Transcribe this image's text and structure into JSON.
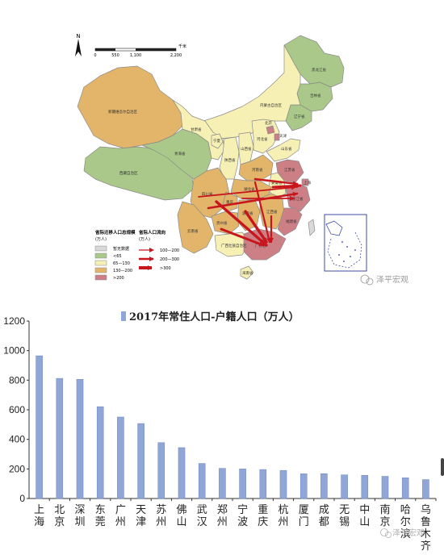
{
  "map": {
    "north_label": "N",
    "scale_labels": [
      "0",
      "550",
      "1,100",
      "2,200"
    ],
    "scale_unit": "千米",
    "legend_size": {
      "title": "省际迁移人口总规模",
      "unit": "(万人)",
      "items": [
        {
          "label": "暂无数据",
          "color": "#d9d9d9"
        },
        {
          "label": "<65",
          "color": "#a9c88a"
        },
        {
          "label": "65—130",
          "color": "#f6f0b4"
        },
        {
          "label": "130—200",
          "color": "#e2b56a"
        },
        {
          "label": ">200",
          "color": "#cd7f86"
        }
      ]
    },
    "legend_flow": {
      "title": "省际人口流向",
      "unit": "(万人)",
      "items": [
        "100—200",
        "200—300",
        ">300"
      ]
    },
    "province_labels": [
      "黑龙江省",
      "吉林省",
      "辽宁省",
      "内蒙古自治区",
      "北京",
      "天津",
      "河北省",
      "新疆维吾尔自治区",
      "甘肃省",
      "青海省",
      "西藏自治区",
      "宁夏",
      "山西省",
      "陕西省",
      "山东省",
      "河南省",
      "江苏省",
      "安徽省",
      "上海",
      "浙江省",
      "湖北省",
      "四川省",
      "重庆",
      "湖南省",
      "江西省",
      "福建省",
      "贵州省",
      "云南省",
      "广西壮族自治区",
      "广东省",
      "海南省"
    ],
    "watermark": "泽平宏观"
  },
  "chart_data": {
    "type": "bar",
    "title": "2017年常住人口-户籍人口（万人）",
    "legend": "2017年常住人口-户籍人口（万人）",
    "categories": [
      "上海",
      "北京",
      "深圳",
      "东莞",
      "广州",
      "天津",
      "苏州",
      "佛山",
      "武汉",
      "郑州",
      "宁波",
      "重庆",
      "杭州",
      "厦门",
      "成都",
      "无锡",
      "中山",
      "南京",
      "哈尔滨",
      "乌鲁木齐"
    ],
    "values": [
      965,
      812,
      806,
      621,
      551,
      507,
      378,
      344,
      237,
      204,
      200,
      196,
      190,
      167,
      168,
      160,
      157,
      150,
      140,
      128
    ],
    "ylim": [
      0,
      1200
    ],
    "yticks": [
      0,
      200,
      400,
      600,
      800,
      1000,
      1200
    ],
    "ytick_labels": [
      "0",
      "200",
      "400",
      "600",
      "800",
      "1000",
      "1200"
    ],
    "xlabel": "",
    "ylabel": "",
    "bar_color": "#8fa6d6",
    "grid": false,
    "legend_position": "top"
  },
  "chart_watermark": "泽平宏观"
}
